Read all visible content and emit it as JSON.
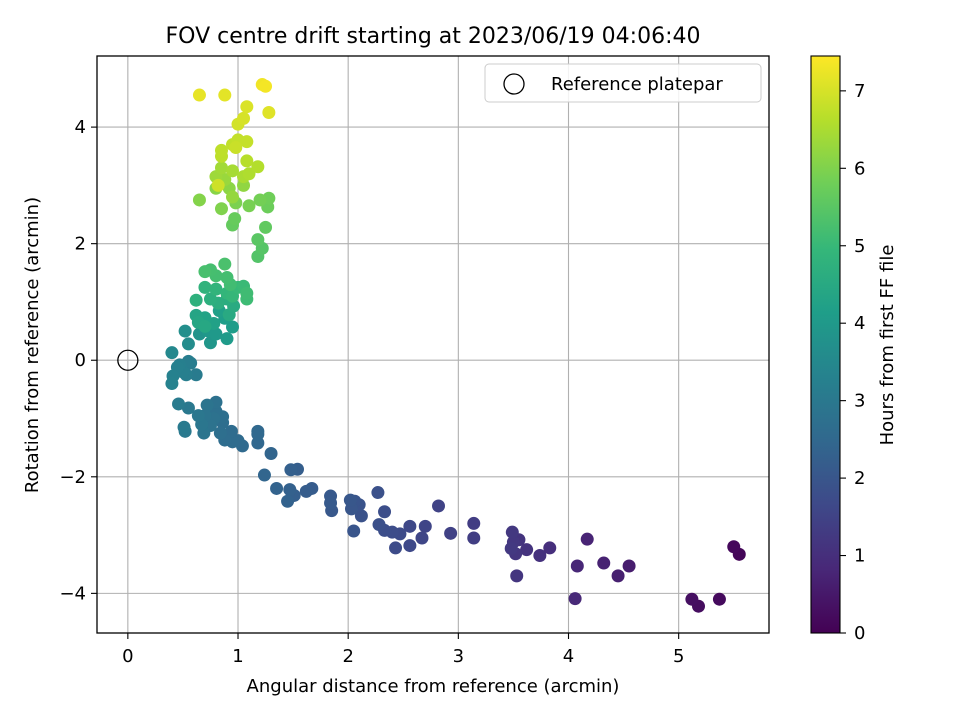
{
  "chart_data": {
    "type": "scatter",
    "title": "FOV centre drift starting at 2023/06/19 04:06:40",
    "xlabel": "Angular distance from reference (arcmin)",
    "ylabel": "Rotation from reference (arcmin)",
    "xlim": [
      -0.28,
      5.82
    ],
    "ylim": [
      -4.68,
      5.22
    ],
    "xticks": [
      0,
      1,
      2,
      3,
      4,
      5
    ],
    "yticks": [
      -4,
      -2,
      0,
      2,
      4
    ],
    "xtick_labels": [
      "0",
      "1",
      "2",
      "3",
      "4",
      "5"
    ],
    "ytick_labels": [
      "−4",
      "−2",
      "0",
      "2",
      "4"
    ],
    "grid": true,
    "legend": {
      "label": "Reference platepar",
      "placement": "top-right",
      "marker": "open-circle"
    },
    "reference_point": {
      "x": 0,
      "y": 0
    },
    "colorbar": {
      "label": "Hours from first FF file",
      "range": [
        0,
        7.45
      ],
      "ticks": [
        0,
        1,
        2,
        3,
        4,
        5,
        6,
        7
      ],
      "tick_labels": [
        "0",
        "1",
        "2",
        "3",
        "4",
        "5",
        "6",
        "7"
      ],
      "colormap": "viridis",
      "colors": [
        "#440154",
        "#482878",
        "#3e4989",
        "#31688e",
        "#26828e",
        "#1f9e89",
        "#35b779",
        "#6ece58",
        "#b5de2b",
        "#fde725"
      ]
    },
    "points": [
      {
        "x": 5.55,
        "y": -3.33,
        "h": 0.1
      },
      {
        "x": 5.5,
        "y": -3.2,
        "h": 0.15
      },
      {
        "x": 5.37,
        "y": -4.1,
        "h": 0.2
      },
      {
        "x": 5.18,
        "y": -4.22,
        "h": 0.25
      },
      {
        "x": 5.12,
        "y": -4.1,
        "h": 0.3
      },
      {
        "x": 4.55,
        "y": -3.53,
        "h": 0.6
      },
      {
        "x": 4.45,
        "y": -3.7,
        "h": 0.65
      },
      {
        "x": 4.32,
        "y": -3.48,
        "h": 0.7
      },
      {
        "x": 4.17,
        "y": -3.07,
        "h": 0.75
      },
      {
        "x": 4.08,
        "y": -3.53,
        "h": 0.8
      },
      {
        "x": 4.06,
        "y": -4.09,
        "h": 0.85
      },
      {
        "x": 3.83,
        "y": -3.22,
        "h": 1.0
      },
      {
        "x": 3.74,
        "y": -3.35,
        "h": 1.05
      },
      {
        "x": 3.62,
        "y": -3.25,
        "h": 1.1
      },
      {
        "x": 3.55,
        "y": -3.08,
        "h": 1.12
      },
      {
        "x": 3.53,
        "y": -3.7,
        "h": 1.15
      },
      {
        "x": 3.52,
        "y": -3.32,
        "h": 1.18
      },
      {
        "x": 3.5,
        "y": -3.12,
        "h": 1.2
      },
      {
        "x": 3.49,
        "y": -2.95,
        "h": 1.22
      },
      {
        "x": 3.48,
        "y": -3.23,
        "h": 1.25
      },
      {
        "x": 3.14,
        "y": -2.8,
        "h": 1.35
      },
      {
        "x": 3.14,
        "y": -3.05,
        "h": 1.38
      },
      {
        "x": 2.93,
        "y": -2.97,
        "h": 1.45
      },
      {
        "x": 2.82,
        "y": -2.5,
        "h": 1.5
      },
      {
        "x": 2.7,
        "y": -2.85,
        "h": 1.55
      },
      {
        "x": 2.67,
        "y": -3.05,
        "h": 1.58
      },
      {
        "x": 2.56,
        "y": -2.85,
        "h": 1.62
      },
      {
        "x": 2.56,
        "y": -3.18,
        "h": 1.65
      },
      {
        "x": 2.47,
        "y": -2.98,
        "h": 1.7
      },
      {
        "x": 2.43,
        "y": -3.22,
        "h": 1.72
      },
      {
        "x": 2.4,
        "y": -2.95,
        "h": 1.75
      },
      {
        "x": 2.33,
        "y": -2.92,
        "h": 1.78
      },
      {
        "x": 2.33,
        "y": -2.6,
        "h": 1.8
      },
      {
        "x": 2.28,
        "y": -2.82,
        "h": 1.83
      },
      {
        "x": 2.27,
        "y": -2.27,
        "h": 1.86
      },
      {
        "x": 2.12,
        "y": -2.67,
        "h": 1.9
      },
      {
        "x": 2.1,
        "y": -2.48,
        "h": 1.92
      },
      {
        "x": 2.06,
        "y": -2.42,
        "h": 1.95
      },
      {
        "x": 2.05,
        "y": -2.93,
        "h": 1.97
      },
      {
        "x": 2.03,
        "y": -2.55,
        "h": 2.0
      },
      {
        "x": 2.02,
        "y": -2.4,
        "h": 2.02
      },
      {
        "x": 1.85,
        "y": -2.58,
        "h": 2.05
      },
      {
        "x": 1.84,
        "y": -2.33,
        "h": 2.08
      },
      {
        "x": 1.84,
        "y": -2.45,
        "h": 2.1
      },
      {
        "x": 1.67,
        "y": -2.2,
        "h": 2.15
      },
      {
        "x": 1.62,
        "y": -2.25,
        "h": 2.18
      },
      {
        "x": 1.54,
        "y": -1.87,
        "h": 2.22
      },
      {
        "x": 1.51,
        "y": -2.32,
        "h": 2.25
      },
      {
        "x": 1.48,
        "y": -1.88,
        "h": 2.28
      },
      {
        "x": 1.47,
        "y": -2.22,
        "h": 2.3
      },
      {
        "x": 1.45,
        "y": -2.42,
        "h": 2.33
      },
      {
        "x": 1.35,
        "y": -2.2,
        "h": 2.36
      },
      {
        "x": 1.3,
        "y": -1.6,
        "h": 2.4
      },
      {
        "x": 1.24,
        "y": -1.97,
        "h": 2.43
      },
      {
        "x": 1.18,
        "y": -1.42,
        "h": 2.47
      },
      {
        "x": 1.18,
        "y": -1.22,
        "h": 2.5
      },
      {
        "x": 1.18,
        "y": -1.27,
        "h": 2.52
      },
      {
        "x": 1.04,
        "y": -1.47,
        "h": 2.55
      },
      {
        "x": 1.0,
        "y": -1.38,
        "h": 2.58
      },
      {
        "x": 0.95,
        "y": -1.4,
        "h": 2.6
      },
      {
        "x": 0.94,
        "y": -1.22,
        "h": 2.62
      },
      {
        "x": 0.88,
        "y": -1.37,
        "h": 2.65
      },
      {
        "x": 0.86,
        "y": -1.07,
        "h": 2.68
      },
      {
        "x": 0.86,
        "y": -0.97,
        "h": 2.7
      },
      {
        "x": 0.84,
        "y": -1.25,
        "h": 2.72
      },
      {
        "x": 0.8,
        "y": -0.88,
        "h": 2.75
      },
      {
        "x": 0.8,
        "y": -0.72,
        "h": 2.78
      },
      {
        "x": 0.78,
        "y": -1.0,
        "h": 2.8
      },
      {
        "x": 0.75,
        "y": -1.12,
        "h": 2.82
      },
      {
        "x": 0.72,
        "y": -0.77,
        "h": 2.85
      },
      {
        "x": 0.7,
        "y": -0.95,
        "h": 2.88
      },
      {
        "x": 0.69,
        "y": -1.25,
        "h": 2.9
      },
      {
        "x": 0.67,
        "y": -1.1,
        "h": 2.93
      },
      {
        "x": 0.64,
        "y": -0.95,
        "h": 2.95
      },
      {
        "x": 0.55,
        "y": -0.82,
        "h": 3.0
      },
      {
        "x": 0.52,
        "y": -1.22,
        "h": 3.02
      },
      {
        "x": 0.51,
        "y": -1.15,
        "h": 3.05
      },
      {
        "x": 0.46,
        "y": -0.75,
        "h": 3.08
      },
      {
        "x": 0.62,
        "y": -0.25,
        "h": 3.1
      },
      {
        "x": 0.57,
        "y": -0.05,
        "h": 3.13
      },
      {
        "x": 0.55,
        "y": -0.02,
        "h": 3.15
      },
      {
        "x": 0.53,
        "y": -0.25,
        "h": 3.18
      },
      {
        "x": 0.5,
        "y": -0.2,
        "h": 3.2
      },
      {
        "x": 0.47,
        "y": -0.08,
        "h": 3.22
      },
      {
        "x": 0.45,
        "y": -0.12,
        "h": 3.25
      },
      {
        "x": 0.41,
        "y": -0.27,
        "h": 3.28
      },
      {
        "x": 0.4,
        "y": -0.4,
        "h": 3.3
      },
      {
        "x": 0.4,
        "y": 0.13,
        "h": 3.5
      },
      {
        "x": 0.55,
        "y": 0.28,
        "h": 3.6
      },
      {
        "x": 0.52,
        "y": 0.5,
        "h": 3.7
      },
      {
        "x": 0.65,
        "y": 0.45,
        "h": 3.8
      },
      {
        "x": 0.75,
        "y": 0.3,
        "h": 3.9
      },
      {
        "x": 0.73,
        "y": 0.5,
        "h": 3.95
      },
      {
        "x": 0.8,
        "y": 0.45,
        "h": 4.0
      },
      {
        "x": 0.9,
        "y": 0.37,
        "h": 4.05
      },
      {
        "x": 0.95,
        "y": 0.57,
        "h": 4.1
      },
      {
        "x": 0.88,
        "y": 0.72,
        "h": 4.15
      },
      {
        "x": 0.83,
        "y": 0.85,
        "h": 4.2
      },
      {
        "x": 0.78,
        "y": 0.63,
        "h": 4.25
      },
      {
        "x": 0.7,
        "y": 0.73,
        "h": 4.3
      },
      {
        "x": 0.62,
        "y": 0.77,
        "h": 4.35
      },
      {
        "x": 0.64,
        "y": 0.65,
        "h": 4.4
      },
      {
        "x": 0.7,
        "y": 0.58,
        "h": 4.45
      },
      {
        "x": 0.92,
        "y": 0.78,
        "h": 4.5
      },
      {
        "x": 0.96,
        "y": 0.93,
        "h": 4.55
      },
      {
        "x": 0.9,
        "y": 1.05,
        "h": 4.6
      },
      {
        "x": 0.82,
        "y": 0.98,
        "h": 4.65
      },
      {
        "x": 0.75,
        "y": 1.05,
        "h": 4.7
      },
      {
        "x": 0.62,
        "y": 1.03,
        "h": 4.75
      },
      {
        "x": 0.7,
        "y": 1.25,
        "h": 4.8
      },
      {
        "x": 0.8,
        "y": 1.22,
        "h": 4.85
      },
      {
        "x": 0.9,
        "y": 1.15,
        "h": 4.9
      },
      {
        "x": 0.95,
        "y": 1.1,
        "h": 4.95
      },
      {
        "x": 1.0,
        "y": 1.25,
        "h": 5.0
      },
      {
        "x": 1.05,
        "y": 1.27,
        "h": 5.05
      },
      {
        "x": 1.08,
        "y": 1.05,
        "h": 5.1
      },
      {
        "x": 1.08,
        "y": 1.15,
        "h": 5.12
      },
      {
        "x": 0.93,
        "y": 1.3,
        "h": 5.15
      },
      {
        "x": 0.9,
        "y": 1.42,
        "h": 5.18
      },
      {
        "x": 0.8,
        "y": 1.45,
        "h": 5.2
      },
      {
        "x": 0.75,
        "y": 1.55,
        "h": 5.22
      },
      {
        "x": 0.7,
        "y": 1.52,
        "h": 5.25
      },
      {
        "x": 0.88,
        "y": 1.65,
        "h": 5.28
      },
      {
        "x": 1.18,
        "y": 1.78,
        "h": 5.4
      },
      {
        "x": 1.22,
        "y": 1.92,
        "h": 5.45
      },
      {
        "x": 1.18,
        "y": 2.07,
        "h": 5.5
      },
      {
        "x": 1.25,
        "y": 2.28,
        "h": 5.6
      },
      {
        "x": 0.95,
        "y": 2.32,
        "h": 5.65
      },
      {
        "x": 0.97,
        "y": 2.43,
        "h": 5.7
      },
      {
        "x": 1.27,
        "y": 2.63,
        "h": 5.75
      },
      {
        "x": 1.28,
        "y": 2.78,
        "h": 5.8
      },
      {
        "x": 1.2,
        "y": 2.75,
        "h": 5.85
      },
      {
        "x": 1.1,
        "y": 2.65,
        "h": 5.9
      },
      {
        "x": 0.98,
        "y": 2.7,
        "h": 5.95
      },
      {
        "x": 0.85,
        "y": 2.6,
        "h": 6.0
      },
      {
        "x": 0.65,
        "y": 2.75,
        "h": 6.05
      },
      {
        "x": 0.8,
        "y": 2.95,
        "h": 6.1
      },
      {
        "x": 0.92,
        "y": 2.95,
        "h": 6.15
      },
      {
        "x": 1.05,
        "y": 3.0,
        "h": 6.2
      },
      {
        "x": 0.95,
        "y": 2.8,
        "h": 6.25
      },
      {
        "x": 0.88,
        "y": 3.1,
        "h": 6.3
      },
      {
        "x": 0.8,
        "y": 3.15,
        "h": 6.35
      },
      {
        "x": 0.85,
        "y": 3.3,
        "h": 6.4
      },
      {
        "x": 0.95,
        "y": 3.25,
        "h": 6.45
      },
      {
        "x": 1.05,
        "y": 3.15,
        "h": 6.5
      },
      {
        "x": 1.1,
        "y": 3.2,
        "h": 6.55
      },
      {
        "x": 1.18,
        "y": 3.32,
        "h": 6.6
      },
      {
        "x": 1.08,
        "y": 3.42,
        "h": 6.65
      },
      {
        "x": 0.85,
        "y": 3.5,
        "h": 6.7
      },
      {
        "x": 0.85,
        "y": 3.6,
        "h": 6.72
      },
      {
        "x": 0.95,
        "y": 3.7,
        "h": 6.75
      },
      {
        "x": 1.0,
        "y": 3.78,
        "h": 6.78
      },
      {
        "x": 1.08,
        "y": 3.75,
        "h": 6.8
      },
      {
        "x": 0.98,
        "y": 3.65,
        "h": 6.85
      },
      {
        "x": 0.82,
        "y": 3.0,
        "h": 6.9
      },
      {
        "x": 1.0,
        "y": 4.05,
        "h": 6.95
      },
      {
        "x": 1.05,
        "y": 4.15,
        "h": 7.0
      },
      {
        "x": 1.08,
        "y": 4.35,
        "h": 7.05
      },
      {
        "x": 1.28,
        "y": 4.25,
        "h": 7.1
      },
      {
        "x": 0.88,
        "y": 4.55,
        "h": 7.15
      },
      {
        "x": 0.65,
        "y": 4.55,
        "h": 7.2
      },
      {
        "x": 1.22,
        "y": 4.73,
        "h": 7.3
      },
      {
        "x": 1.25,
        "y": 4.7,
        "h": 7.35
      }
    ]
  }
}
